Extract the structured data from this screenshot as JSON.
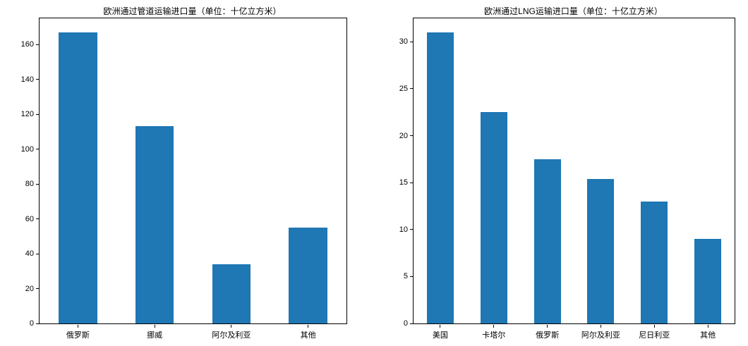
{
  "chart_data": [
    {
      "type": "bar",
      "title": "欧洲通过管道运输进口量（单位：十亿立方米）",
      "categories": [
        "俄罗斯",
        "挪威",
        "阿尔及利亚",
        "其他"
      ],
      "values": [
        167,
        113,
        34,
        55
      ],
      "yticks": [
        0,
        20,
        40,
        60,
        80,
        100,
        120,
        140,
        160
      ],
      "ylim": [
        0,
        175
      ],
      "xlabel": "",
      "ylabel": "",
      "grid": false,
      "legend": false,
      "bar_color": "#1f77b4"
    },
    {
      "type": "bar",
      "title": "欧洲通过LNG运输进口量（单位：十亿立方米）",
      "categories": [
        "美国",
        "卡塔尔",
        "俄罗斯",
        "阿尔及利亚",
        "尼日利亚",
        "其他"
      ],
      "values": [
        31,
        22.5,
        17.5,
        15.4,
        13,
        9
      ],
      "yticks": [
        0,
        5,
        10,
        15,
        20,
        25,
        30
      ],
      "ylim": [
        0,
        32.5
      ],
      "xlabel": "",
      "ylabel": "",
      "grid": false,
      "legend": false,
      "bar_color": "#1f77b4"
    }
  ]
}
